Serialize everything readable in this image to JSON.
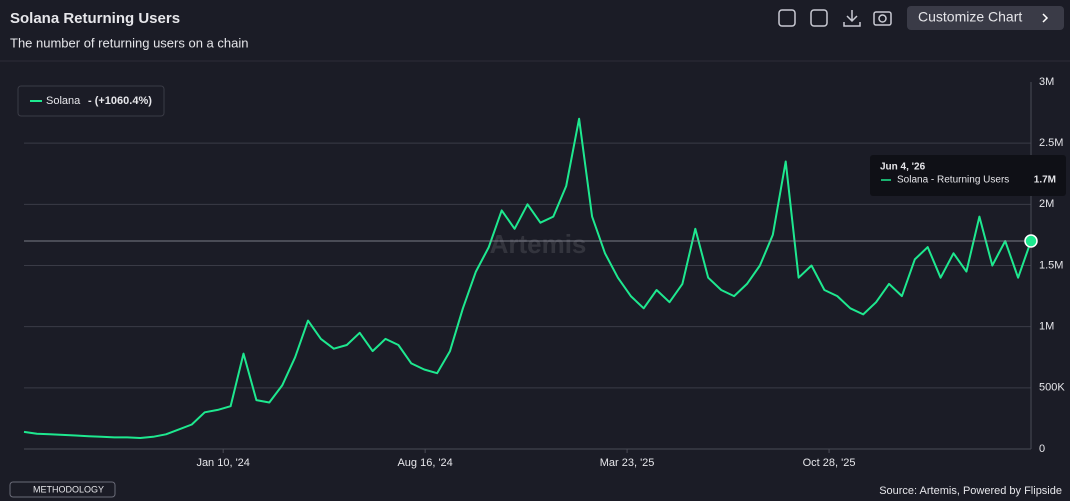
{
  "header": {
    "title": "Solana Returning Users",
    "subtitle": "The number of returning users on a chain",
    "button": "Customize Chart"
  },
  "footer": {
    "methodology": "METHODOLOGY",
    "source": "Source: Artemis, Powered by Flipside"
  },
  "watermark": "Artemis",
  "chart_data": {
    "type": "line",
    "legend": {
      "name": "Solana",
      "change": "- (+1060.4%)"
    },
    "tooltip": {
      "date": "Jun 4, '26",
      "label": "Solana - Returning Users",
      "value": 1700000,
      "value_label": "1.7M"
    },
    "x": [
      "2023-06-08",
      "2023-06-22",
      "2023-07-06",
      "2023-07-20",
      "2023-08-03",
      "2023-08-17",
      "2023-08-31",
      "2023-09-14",
      "2023-09-28",
      "2023-10-12",
      "2023-10-26",
      "2023-11-09",
      "2023-11-23",
      "2023-12-07",
      "2023-12-21",
      "2024-01-04",
      "2024-01-18",
      "2024-02-01",
      "2024-02-15",
      "2024-02-29",
      "2024-03-14",
      "2024-03-28",
      "2024-04-11",
      "2024-04-25",
      "2024-05-09",
      "2024-05-23",
      "2024-06-06",
      "2024-06-20",
      "2024-07-04",
      "2024-07-18",
      "2024-08-01",
      "2024-08-15",
      "2024-08-29",
      "2024-09-12",
      "2024-09-26",
      "2024-10-10",
      "2024-10-24",
      "2024-11-07",
      "2024-11-21",
      "2024-12-05",
      "2024-12-19",
      "2025-01-02",
      "2025-01-16",
      "2025-01-30",
      "2025-02-13",
      "2025-02-27",
      "2025-03-13",
      "2025-03-27",
      "2025-04-10",
      "2025-04-24",
      "2025-05-08",
      "2025-05-22",
      "2025-06-05",
      "2025-06-19",
      "2025-07-03",
      "2025-07-17",
      "2025-07-31",
      "2025-08-14",
      "2025-08-28",
      "2025-09-11",
      "2025-09-25",
      "2025-10-09",
      "2025-10-23",
      "2025-11-06",
      "2025-11-20",
      "2025-12-04",
      "2025-12-18",
      "2026-01-01",
      "2026-01-15",
      "2026-01-29",
      "2026-02-12",
      "2026-02-26",
      "2026-03-12",
      "2026-03-26",
      "2026-04-09",
      "2026-04-23",
      "2026-05-07",
      "2026-05-21",
      "2026-06-04"
    ],
    "series": [
      {
        "name": "Solana",
        "color": "#1ee88f",
        "values": [
          140000,
          125000,
          120000,
          115000,
          110000,
          105000,
          100000,
          95000,
          95000,
          90000,
          100000,
          120000,
          160000,
          200000,
          300000,
          320000,
          350000,
          780000,
          400000,
          380000,
          520000,
          750000,
          1050000,
          900000,
          820000,
          850000,
          950000,
          800000,
          900000,
          850000,
          700000,
          650000,
          620000,
          800000,
          1150000,
          1450000,
          1650000,
          1950000,
          1800000,
          2000000,
          1850000,
          1900000,
          2150000,
          2700000,
          1900000,
          1600000,
          1400000,
          1250000,
          1150000,
          1300000,
          1200000,
          1350000,
          1800000,
          1400000,
          1300000,
          1250000,
          1350000,
          1500000,
          1750000,
          2350000,
          1400000,
          1500000,
          1300000,
          1250000,
          1150000,
          1100000,
          1200000,
          1350000,
          1250000,
          1550000,
          1650000,
          1400000,
          1600000,
          1450000,
          1900000,
          1500000,
          1700000,
          1400000,
          1700000
        ]
      }
    ],
    "xlim": [
      "2023-06-08",
      "2026-06-04"
    ],
    "xticks": [
      {
        "value": "2024-01-10",
        "label": "Jan 10, '24"
      },
      {
        "value": "2024-08-16",
        "label": "Aug 16, '24"
      },
      {
        "value": "2025-03-23",
        "label": "Mar 23, '25"
      },
      {
        "value": "2025-10-28",
        "label": "Oct 28, '25"
      }
    ],
    "ylim": [
      0,
      3000000
    ],
    "yticks": [
      0,
      {
        "value": 500000,
        "label": "500K"
      },
      {
        "value": 1000000,
        "label": "1M"
      },
      {
        "value": 1500000,
        "label": "1.5M"
      },
      {
        "value": 2000000,
        "label": "2M"
      },
      {
        "value": 2500000,
        "label": "2.5M"
      },
      {
        "value": 3000000,
        "label": "3M"
      }
    ],
    "grid": true
  }
}
